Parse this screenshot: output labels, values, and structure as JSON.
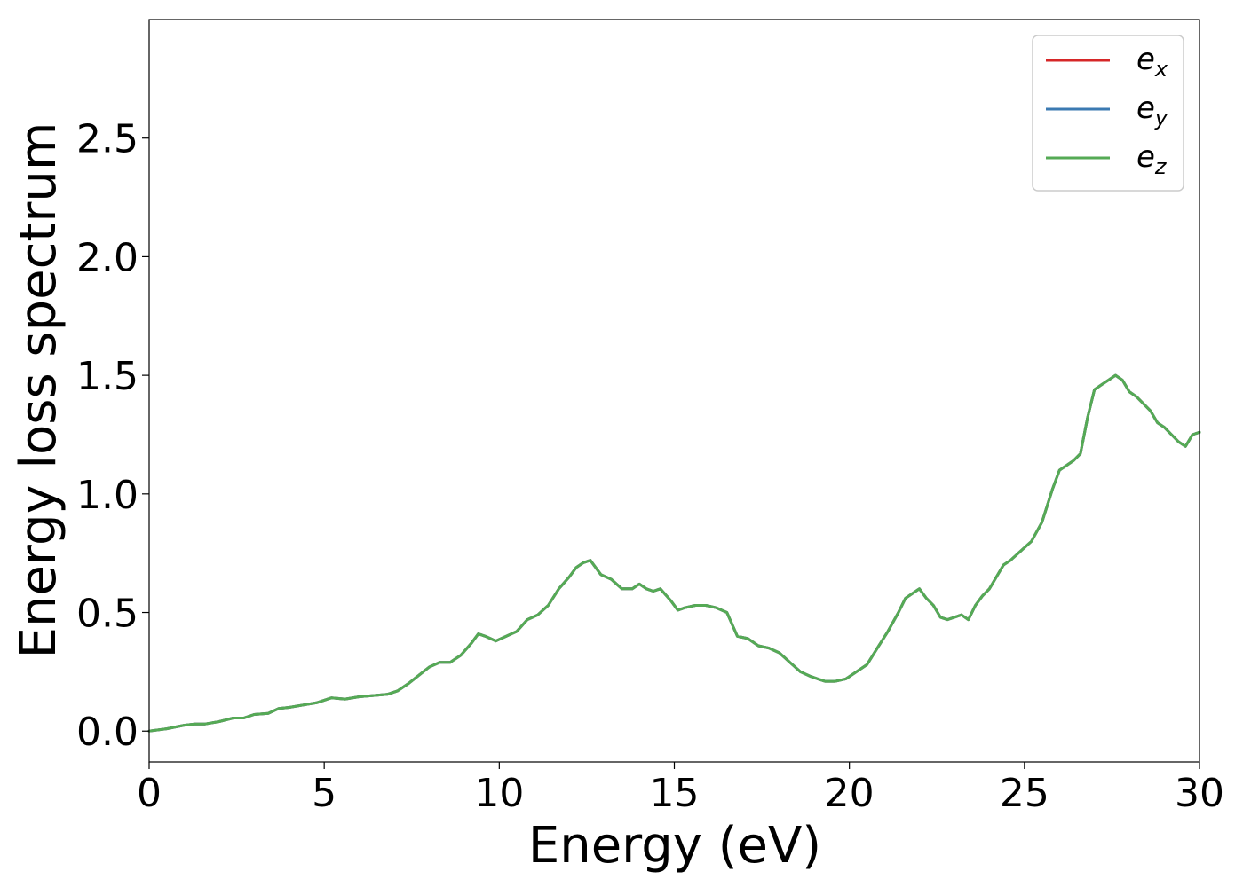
{
  "chart_data": {
    "type": "line",
    "title": "",
    "xlabel": "Energy (eV)",
    "ylabel": "Energy loss spectrum",
    "xlim": [
      0,
      30
    ],
    "ylim": [
      -0.13,
      3.0
    ],
    "xticks": [
      0,
      5,
      10,
      15,
      20,
      25,
      30
    ],
    "xtick_labels": [
      "0",
      "5",
      "10",
      "15",
      "20",
      "25",
      "30"
    ],
    "yticks": [
      0.0,
      0.5,
      1.0,
      1.5,
      2.0,
      2.5
    ],
    "ytick_labels": [
      "0.0",
      "0.5",
      "1.0",
      "1.5",
      "2.0",
      "2.5"
    ],
    "grid": false,
    "legend_position": "top-right",
    "x": [
      0,
      0.5,
      1.0,
      1.3,
      1.6,
      2.0,
      2.4,
      2.7,
      3.0,
      3.4,
      3.7,
      4.0,
      4.4,
      4.8,
      5.2,
      5.6,
      6.0,
      6.4,
      6.8,
      7.1,
      7.4,
      7.7,
      8.0,
      8.3,
      8.6,
      8.9,
      9.2,
      9.4,
      9.6,
      9.9,
      10.2,
      10.5,
      10.8,
      11.1,
      11.4,
      11.7,
      12.0,
      12.2,
      12.4,
      12.6,
      12.9,
      13.2,
      13.5,
      13.8,
      14.0,
      14.2,
      14.4,
      14.6,
      14.9,
      15.1,
      15.3,
      15.6,
      15.9,
      16.2,
      16.5,
      16.8,
      17.1,
      17.4,
      17.7,
      18.0,
      18.3,
      18.6,
      18.9,
      19.1,
      19.3,
      19.6,
      19.9,
      20.2,
      20.5,
      20.8,
      21.1,
      21.4,
      21.6,
      21.8,
      22.0,
      22.2,
      22.4,
      22.6,
      22.8,
      23.0,
      23.2,
      23.4,
      23.6,
      23.8,
      24.0,
      24.2,
      24.4,
      24.6,
      24.9,
      25.2,
      25.5,
      25.8,
      26.0,
      26.2,
      26.4,
      26.6,
      26.8,
      27.0,
      27.2,
      27.4,
      27.6,
      27.8,
      28.0,
      28.2,
      28.4,
      28.6,
      28.8,
      29.0,
      29.2,
      29.4,
      29.6,
      29.8,
      30.0
    ],
    "series": [
      {
        "name": "e_x",
        "label_base": "e",
        "label_sub": "x",
        "color": "#d62728",
        "values": [
          0.0,
          0.01,
          0.025,
          0.03,
          0.03,
          0.04,
          0.055,
          0.055,
          0.07,
          0.075,
          0.095,
          0.1,
          0.11,
          0.12,
          0.14,
          0.135,
          0.145,
          0.15,
          0.155,
          0.17,
          0.2,
          0.235,
          0.27,
          0.29,
          0.29,
          0.32,
          0.37,
          0.41,
          0.4,
          0.38,
          0.4,
          0.42,
          0.47,
          0.49,
          0.53,
          0.6,
          0.65,
          0.69,
          0.71,
          0.72,
          0.66,
          0.64,
          0.6,
          0.6,
          0.62,
          0.6,
          0.59,
          0.6,
          0.55,
          0.51,
          0.52,
          0.53,
          0.53,
          0.52,
          0.5,
          0.4,
          0.39,
          0.36,
          0.35,
          0.33,
          0.29,
          0.25,
          0.23,
          0.22,
          0.21,
          0.21,
          0.22,
          0.25,
          0.28,
          0.35,
          0.42,
          0.5,
          0.56,
          0.58,
          0.6,
          0.56,
          0.53,
          0.48,
          0.47,
          0.48,
          0.49,
          0.47,
          0.53,
          0.57,
          0.6,
          0.65,
          0.7,
          0.72,
          0.76,
          0.8,
          0.88,
          1.02,
          1.1,
          1.12,
          1.14,
          1.17,
          1.32,
          1.44,
          1.46,
          1.48,
          1.5,
          1.48,
          1.43,
          1.41,
          1.38,
          1.35,
          1.3,
          1.28,
          1.25,
          1.22,
          1.2,
          1.25,
          1.26
        ]
      },
      {
        "name": "e_y",
        "label_base": "e",
        "label_sub": "y",
        "color": "#3b7ab2",
        "values": [
          0.0,
          0.01,
          0.025,
          0.03,
          0.03,
          0.04,
          0.055,
          0.055,
          0.07,
          0.075,
          0.095,
          0.1,
          0.11,
          0.12,
          0.14,
          0.135,
          0.145,
          0.15,
          0.155,
          0.17,
          0.2,
          0.235,
          0.27,
          0.29,
          0.29,
          0.32,
          0.37,
          0.41,
          0.4,
          0.38,
          0.4,
          0.42,
          0.47,
          0.49,
          0.53,
          0.6,
          0.65,
          0.69,
          0.71,
          0.72,
          0.66,
          0.64,
          0.6,
          0.6,
          0.62,
          0.6,
          0.59,
          0.6,
          0.55,
          0.51,
          0.52,
          0.53,
          0.53,
          0.52,
          0.5,
          0.4,
          0.39,
          0.36,
          0.35,
          0.33,
          0.29,
          0.25,
          0.23,
          0.22,
          0.21,
          0.21,
          0.22,
          0.25,
          0.28,
          0.35,
          0.42,
          0.5,
          0.56,
          0.58,
          0.6,
          0.56,
          0.53,
          0.48,
          0.47,
          0.48,
          0.49,
          0.47,
          0.53,
          0.57,
          0.6,
          0.65,
          0.7,
          0.72,
          0.76,
          0.8,
          0.88,
          1.02,
          1.1,
          1.12,
          1.14,
          1.17,
          1.32,
          1.44,
          1.46,
          1.48,
          1.5,
          1.48,
          1.43,
          1.41,
          1.38,
          1.35,
          1.3,
          1.28,
          1.25,
          1.22,
          1.2,
          1.25,
          1.26
        ]
      },
      {
        "name": "e_z",
        "label_base": "e",
        "label_sub": "z",
        "color": "#55aa55",
        "values": [
          0.0,
          0.01,
          0.025,
          0.03,
          0.03,
          0.04,
          0.055,
          0.055,
          0.07,
          0.075,
          0.095,
          0.1,
          0.11,
          0.12,
          0.14,
          0.135,
          0.145,
          0.15,
          0.155,
          0.17,
          0.2,
          0.235,
          0.27,
          0.29,
          0.29,
          0.32,
          0.37,
          0.41,
          0.4,
          0.38,
          0.4,
          0.42,
          0.47,
          0.49,
          0.53,
          0.6,
          0.65,
          0.69,
          0.71,
          0.72,
          0.66,
          0.64,
          0.6,
          0.6,
          0.62,
          0.6,
          0.59,
          0.6,
          0.55,
          0.51,
          0.52,
          0.53,
          0.53,
          0.52,
          0.5,
          0.4,
          0.39,
          0.36,
          0.35,
          0.33,
          0.29,
          0.25,
          0.23,
          0.22,
          0.21,
          0.21,
          0.22,
          0.25,
          0.28,
          0.35,
          0.42,
          0.5,
          0.56,
          0.58,
          0.6,
          0.56,
          0.53,
          0.48,
          0.47,
          0.48,
          0.49,
          0.47,
          0.53,
          0.57,
          0.6,
          0.65,
          0.7,
          0.72,
          0.76,
          0.8,
          0.88,
          1.02,
          1.1,
          1.12,
          1.14,
          1.17,
          1.32,
          1.44,
          1.46,
          1.48,
          1.5,
          1.48,
          1.43,
          1.41,
          1.38,
          1.35,
          1.3,
          1.28,
          1.25,
          1.22,
          1.2,
          1.25,
          1.26
        ]
      }
    ]
  }
}
